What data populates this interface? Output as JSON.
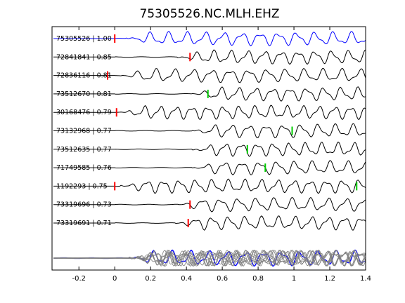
{
  "chart_data": {
    "type": "line",
    "title": "75305526.NC.MLH.EHZ",
    "xlabel": "",
    "ylabel": "",
    "xlim": [
      -0.35,
      1.4
    ],
    "xticks": [
      -0.2,
      0,
      0.2,
      0.4,
      0.6,
      0.8,
      1,
      1.2,
      1.4
    ],
    "xtick_labels": [
      "-0.2",
      "0",
      "0.2",
      "0.4",
      "0.6",
      "0.8",
      "1",
      "1.2",
      "1.4"
    ],
    "grid": false,
    "colors": {
      "reference": "#0000ff",
      "trace": "#000000",
      "stack": "#808080",
      "pick_red": "#ff0000",
      "pick_green": "#00cc00"
    },
    "series": [
      {
        "label": "75305526 | 1.00",
        "pick_time": 0.0,
        "pick_color": "red",
        "reference": true
      },
      {
        "label": "72841841 | 0.85",
        "pick_time": 0.42,
        "pick_color": "red"
      },
      {
        "label": "72836116 | 0.81",
        "pick_time": -0.04,
        "pick_color": "red"
      },
      {
        "label": "73512670 | 0.81",
        "pick_time": 0.52,
        "pick_color": "green"
      },
      {
        "label": "30168476 | 0.79",
        "pick_time": 0.01,
        "pick_color": "red"
      },
      {
        "label": "73132968 | 0.77",
        "pick_time": 0.99,
        "pick_color": "green"
      },
      {
        "label": "73512635 | 0.77",
        "pick_time": 0.74,
        "pick_color": "green"
      },
      {
        "label": "71749585 | 0.76",
        "pick_time": 0.84,
        "pick_color": "green"
      },
      {
        "label": "1192293 | 0.75",
        "pick_time": 0.0,
        "pick_color": "red",
        "pick_time_2": 1.35,
        "pick_color_2": "green"
      },
      {
        "label": "73319696 | 0.73",
        "pick_time": 0.42,
        "pick_color": "red"
      },
      {
        "label": "73319691 | 0.71",
        "pick_time": 0.41,
        "pick_color": "red"
      }
    ],
    "stack": {
      "label": "",
      "overlay": true
    }
  }
}
